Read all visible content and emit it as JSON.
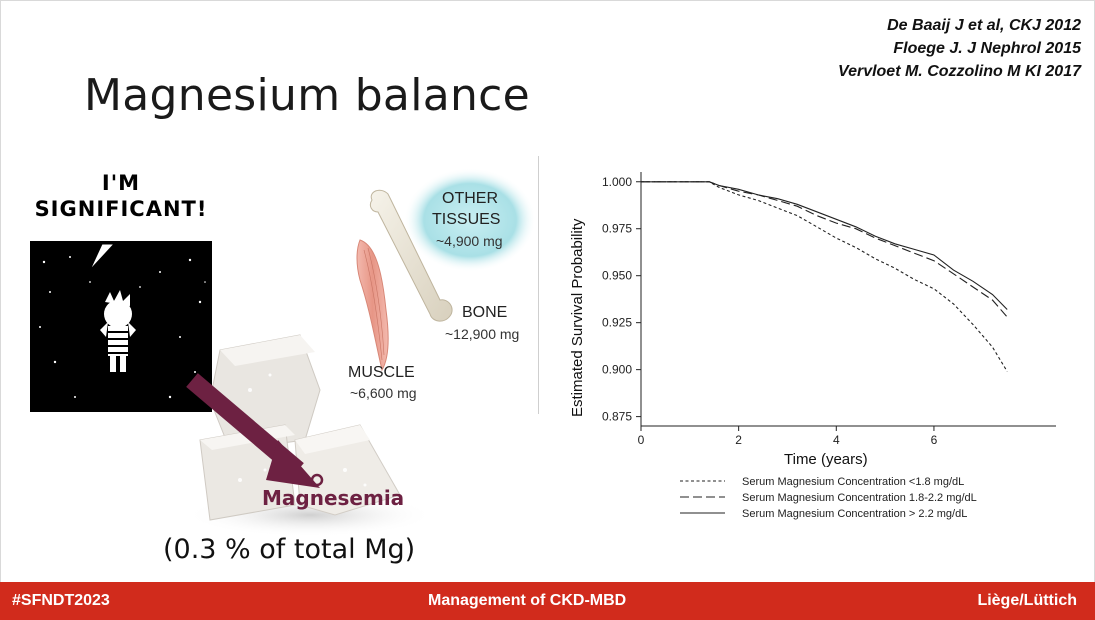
{
  "slide": {
    "title": "Magnesium balance",
    "references": [
      "De Baaij J et al, CKJ 2012",
      "Floege J. J Nephrol 2015",
      "Vervloet M. Cozzolino M KI 2017"
    ],
    "comic_text_line1": "I'M",
    "comic_text_line2": "SIGNIFICANT!",
    "magnesemia_label": "Magnesemia",
    "magnesemia_note": "(0.3 % of total Mg)",
    "figure": {
      "other_tissues_label_1": "OTHER",
      "other_tissues_label_2": "TISSUES",
      "other_tissues_value": "~4,900 mg",
      "bone_label": "BONE",
      "bone_value": "~12,900 mg",
      "muscle_label": "MUSCLE",
      "muscle_value": "~6,600 mg"
    },
    "colors": {
      "footer": "#d12b1c",
      "accent": "#6d2142"
    }
  },
  "footer": {
    "left": "#SFNDT2023",
    "center": "Management of CKD-MBD",
    "right": "Liège/Lüttich"
  },
  "chart_data": {
    "type": "line",
    "xlabel": "Time (years)",
    "ylabel": "Estimated Survival Probability",
    "xlim": [
      0,
      8.5
    ],
    "ylim": [
      0.87,
      1.002
    ],
    "xticks": [
      0,
      2,
      4,
      6
    ],
    "yticks": [
      "1.000",
      "0.975",
      "0.950",
      "0.925",
      "0.900",
      "0.875"
    ],
    "legend_position": "bottom",
    "series": [
      {
        "name": "Serum Magnesium Concentration <1.8 mg/dL",
        "dash": "dotted",
        "x": [
          0,
          1.4,
          1.6,
          2.0,
          2.4,
          2.8,
          3.2,
          3.6,
          4.0,
          4.4,
          4.8,
          5.2,
          5.6,
          6.0,
          6.4,
          6.8,
          7.2,
          7.5
        ],
        "y": [
          1.0,
          1.0,
          0.997,
          0.993,
          0.99,
          0.986,
          0.982,
          0.976,
          0.97,
          0.965,
          0.959,
          0.954,
          0.948,
          0.943,
          0.935,
          0.924,
          0.912,
          0.899
        ]
      },
      {
        "name": "Serum Magnesium Concentration 1.8-2.2 mg/dL",
        "dash": "dashed",
        "x": [
          0,
          1.4,
          1.6,
          2.0,
          2.4,
          2.8,
          3.2,
          3.6,
          4.0,
          4.4,
          4.8,
          5.2,
          5.6,
          6.0,
          6.4,
          6.8,
          7.2,
          7.5
        ],
        "y": [
          1.0,
          1.0,
          0.998,
          0.995,
          0.993,
          0.99,
          0.987,
          0.982,
          0.978,
          0.975,
          0.97,
          0.966,
          0.962,
          0.958,
          0.951,
          0.944,
          0.937,
          0.928
        ]
      },
      {
        "name": "Serum Magnesium Concentration > 2.2 mg/dL",
        "dash": "solid",
        "x": [
          0,
          1.4,
          1.6,
          2.0,
          2.4,
          2.8,
          3.2,
          3.6,
          4.0,
          4.4,
          4.8,
          5.2,
          5.6,
          6.0,
          6.4,
          6.8,
          7.2,
          7.5
        ],
        "y": [
          1.0,
          1.0,
          0.998,
          0.996,
          0.993,
          0.991,
          0.988,
          0.984,
          0.98,
          0.976,
          0.971,
          0.967,
          0.964,
          0.961,
          0.953,
          0.947,
          0.94,
          0.932
        ]
      }
    ]
  }
}
